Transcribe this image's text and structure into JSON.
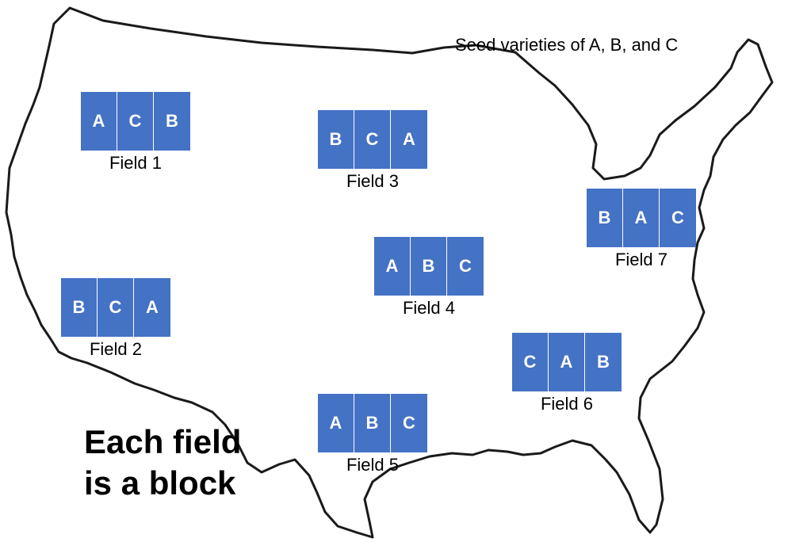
{
  "caption": "Seed varieties of A, B, and C",
  "note_line1": "Each field",
  "note_line2": "is a block",
  "fields": [
    {
      "label": "Field 1",
      "plots": [
        "A",
        "C",
        "B"
      ]
    },
    {
      "label": "Field 2",
      "plots": [
        "B",
        "C",
        "A"
      ]
    },
    {
      "label": "Field 3",
      "plots": [
        "B",
        "C",
        "A"
      ]
    },
    {
      "label": "Field 4",
      "plots": [
        "A",
        "B",
        "C"
      ]
    },
    {
      "label": "Field 5",
      "plots": [
        "A",
        "B",
        "C"
      ]
    },
    {
      "label": "Field 6",
      "plots": [
        "C",
        "A",
        "B"
      ]
    },
    {
      "label": "Field 7",
      "plots": [
        "B",
        "A",
        "C"
      ]
    }
  ],
  "colors": {
    "plot_fill": "#4472c4",
    "outline": "#1a1a1a"
  }
}
